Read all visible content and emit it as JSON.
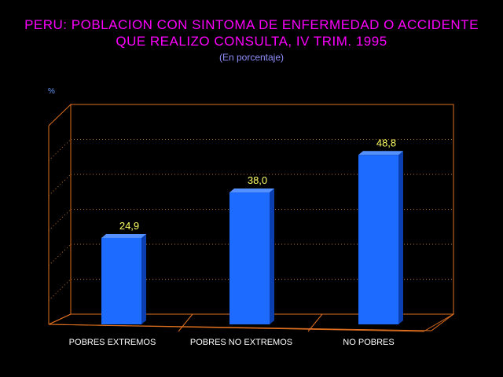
{
  "title_line1": "PERU: POBLACION CON SINTOMA DE ENFERMEDAD O ACCIDENTE",
  "title_line2": "QUE REALIZO CONSULTA, IV TRIM. 1995",
  "subtitle": "(En porcentaje)",
  "unit_label": "%",
  "colors": {
    "title": "#FF00FF",
    "subtitle": "#9090FF",
    "bar": "#1E6BFF",
    "bar_side": "#0B3FB0",
    "frame": "#E07020",
    "grid": "#C07020",
    "value_label": "#FFFF66",
    "category_label": "#FFFFFF"
  },
  "chart_data": {
    "type": "bar",
    "title": "PERU: POBLACION CON SINTOMA DE ENFERMEDAD O ACCIDENTE QUE REALIZO CONSULTA, IV TRIM. 1995",
    "subtitle": "(En porcentaje)",
    "ylabel": "%",
    "categories": [
      "POBRES EXTREMOS",
      "POBRES NO EXTREMOS",
      "NO POBRES"
    ],
    "values": [
      24.9,
      38.0,
      48.8
    ],
    "value_labels": [
      "24,9",
      "38,0",
      "48,8"
    ],
    "ylim": [
      0,
      60
    ],
    "grid": true,
    "legend": "none"
  }
}
